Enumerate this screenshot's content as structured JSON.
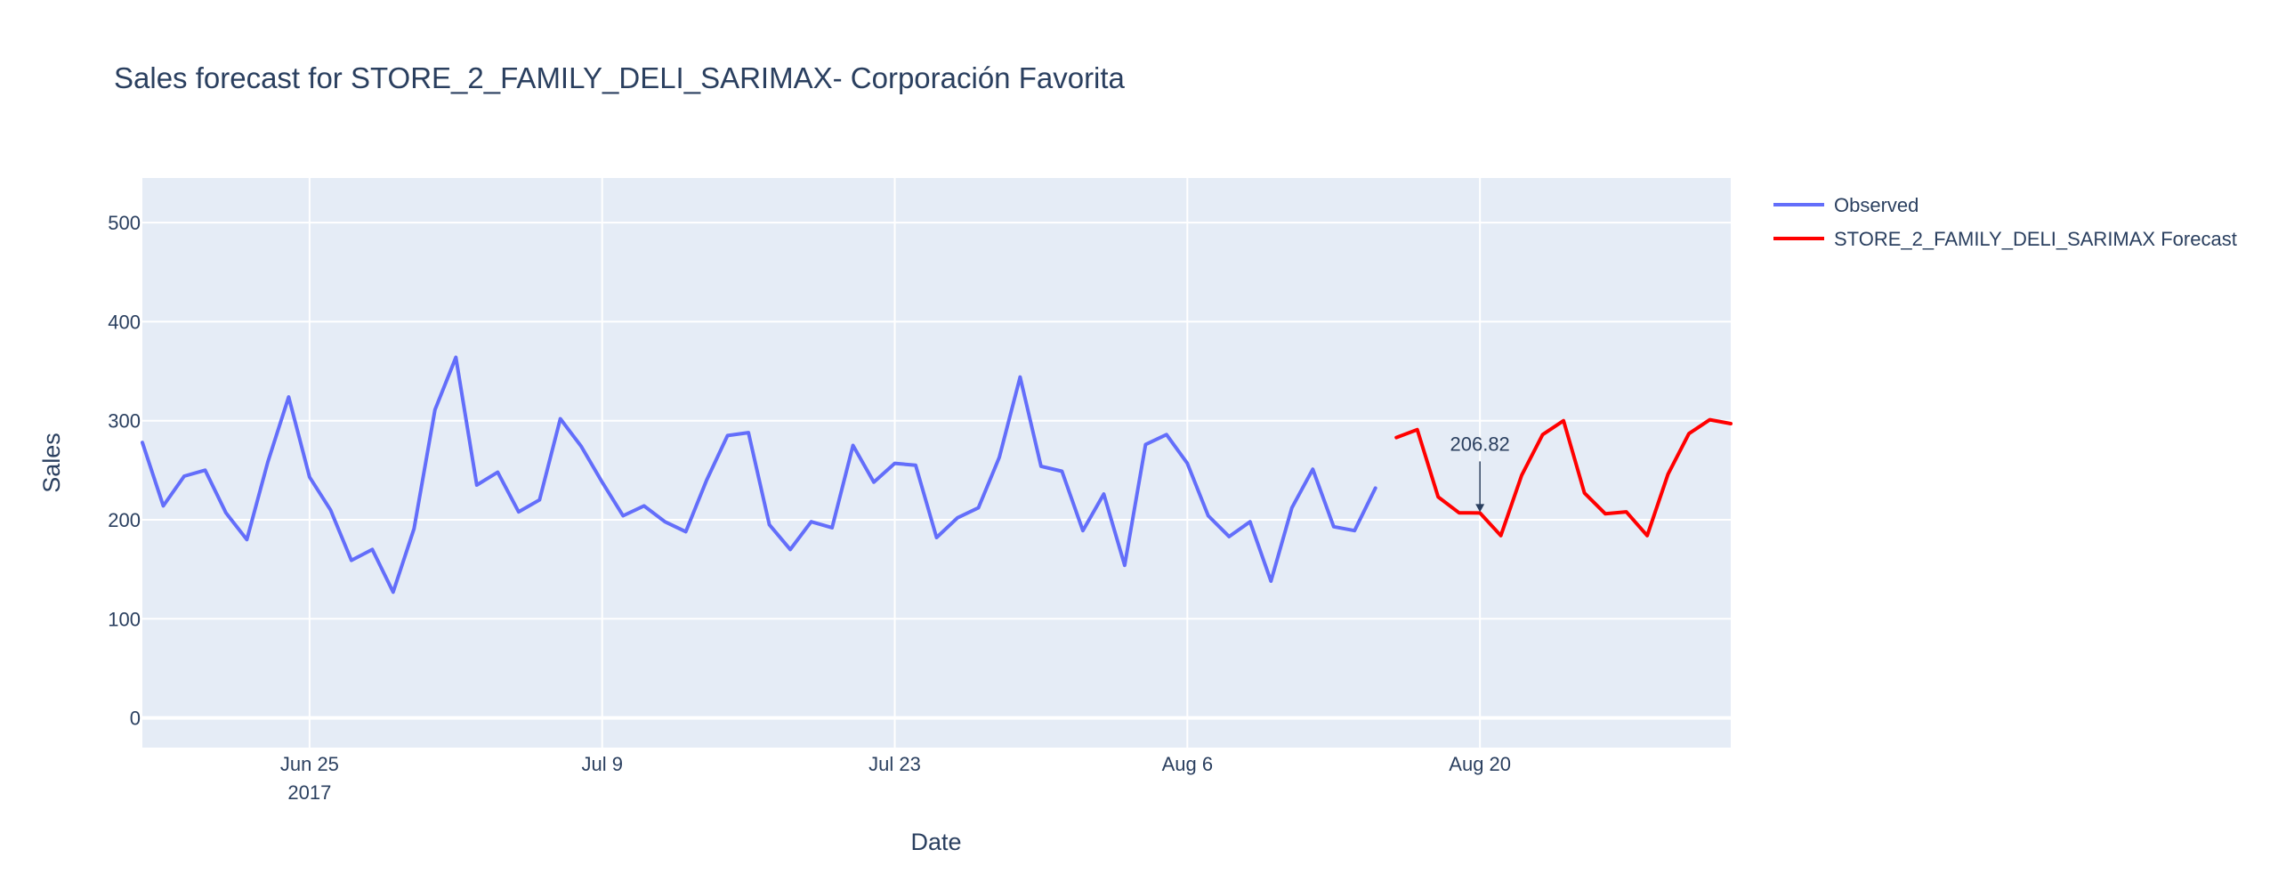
{
  "chart_data": {
    "type": "line",
    "title": "Sales forecast for STORE_2_FAMILY_DELI_SARIMAX- Corporación Favorita",
    "xlabel": "Date",
    "ylabel": "Sales",
    "xlim": [
      "2017-06-17",
      "2017-09-01"
    ],
    "ylim": [
      -30,
      545
    ],
    "x_ticks": [
      {
        "date": "2017-06-25",
        "label": "Jun 25",
        "sublabel": "2017"
      },
      {
        "date": "2017-07-09",
        "label": "Jul 9"
      },
      {
        "date": "2017-07-23",
        "label": "Jul 23"
      },
      {
        "date": "2017-08-06",
        "label": "Aug 6"
      },
      {
        "date": "2017-08-20",
        "label": "Aug 20"
      }
    ],
    "y_ticks": [
      {
        "value": 0,
        "label": "0"
      },
      {
        "value": 100,
        "label": "100"
      },
      {
        "value": 200,
        "label": "200"
      },
      {
        "value": 300,
        "label": "300"
      },
      {
        "value": 400,
        "label": "400"
      },
      {
        "value": 500,
        "label": "500"
      }
    ],
    "grid": true,
    "legend_position": "top-right, outside plot",
    "series": [
      {
        "name": "Observed",
        "color": "#636efa",
        "x": [
          "2017-06-17",
          "2017-06-18",
          "2017-06-19",
          "2017-06-20",
          "2017-06-21",
          "2017-06-22",
          "2017-06-23",
          "2017-06-24",
          "2017-06-25",
          "2017-06-26",
          "2017-06-27",
          "2017-06-28",
          "2017-06-29",
          "2017-06-30",
          "2017-07-01",
          "2017-07-02",
          "2017-07-03",
          "2017-07-04",
          "2017-07-05",
          "2017-07-06",
          "2017-07-07",
          "2017-07-08",
          "2017-07-09",
          "2017-07-10",
          "2017-07-11",
          "2017-07-12",
          "2017-07-13",
          "2017-07-14",
          "2017-07-15",
          "2017-07-16",
          "2017-07-17",
          "2017-07-18",
          "2017-07-19",
          "2017-07-20",
          "2017-07-21",
          "2017-07-22",
          "2017-07-23",
          "2017-07-24",
          "2017-07-25",
          "2017-07-26",
          "2017-07-27",
          "2017-07-28",
          "2017-07-29",
          "2017-07-30",
          "2017-07-31",
          "2017-08-01",
          "2017-08-02",
          "2017-08-03",
          "2017-08-04",
          "2017-08-05",
          "2017-08-06",
          "2017-08-07",
          "2017-08-08",
          "2017-08-09",
          "2017-08-10",
          "2017-08-11",
          "2017-08-12",
          "2017-08-13",
          "2017-08-14",
          "2017-08-15"
        ],
        "values": [
          278,
          214,
          244,
          250,
          207,
          180,
          258,
          324,
          243,
          210,
          159,
          170,
          127,
          191,
          311,
          364,
          235,
          248,
          208,
          220,
          302,
          274,
          238,
          204,
          214,
          198,
          188,
          240,
          285,
          288,
          195,
          170,
          198,
          192,
          275,
          238,
          257,
          255,
          182,
          202,
          212,
          263,
          344,
          254,
          249,
          189,
          226,
          154,
          276,
          286,
          257,
          204,
          183,
          198,
          138,
          212,
          251,
          193,
          189,
          232
        ]
      },
      {
        "name": "STORE_2_FAMILY_DELI_SARIMAX Forecast",
        "color": "#ff0000",
        "x": [
          "2017-08-16",
          "2017-08-17",
          "2017-08-18",
          "2017-08-19",
          "2017-08-20",
          "2017-08-21",
          "2017-08-22",
          "2017-08-23",
          "2017-08-24",
          "2017-08-25",
          "2017-08-26",
          "2017-08-27",
          "2017-08-28",
          "2017-08-29",
          "2017-08-30",
          "2017-08-31",
          "2017-09-01"
        ],
        "values": [
          283,
          291,
          223,
          207,
          206.82,
          184,
          245,
          286,
          300,
          227,
          206,
          208,
          184,
          246,
          287,
          301,
          297
        ]
      }
    ],
    "annotations": [
      {
        "x": "2017-08-20",
        "y": 206.82,
        "text": "206.82"
      }
    ]
  }
}
